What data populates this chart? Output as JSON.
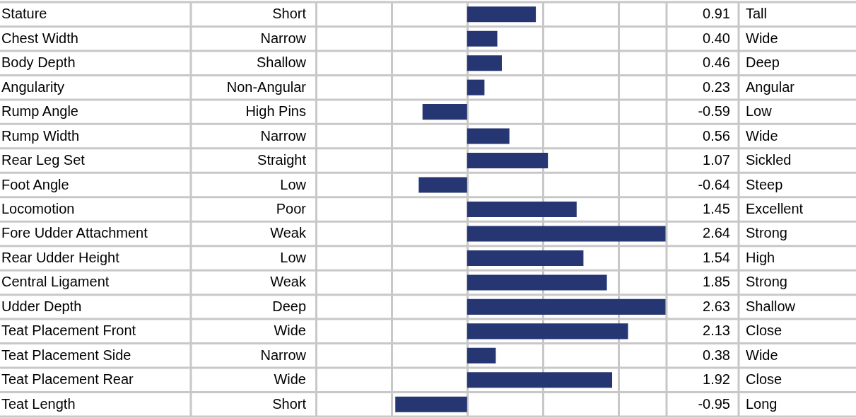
{
  "chart_data": {
    "type": "bar",
    "orientation": "horizontal",
    "categories": [
      "Stature",
      "Chest Width",
      "Body Depth",
      "Angularity",
      "Rump Angle",
      "Rump Width",
      "Rear Leg Set",
      "Foot Angle",
      "Locomotion",
      "Fore Udder Attachment",
      "Rear Udder Height",
      "Central Ligament",
      "Udder Depth",
      "Teat Placement Front",
      "Teat Placement Side",
      "Teat Placement Rear",
      "Teat Length"
    ],
    "values": [
      0.91,
      0.4,
      0.46,
      0.23,
      -0.59,
      0.56,
      1.07,
      -0.64,
      1.45,
      2.64,
      1.54,
      1.85,
      2.63,
      2.13,
      0.38,
      1.92,
      -0.95
    ],
    "value_labels": [
      "0.91",
      "0.40",
      "0.46",
      "0.23",
      "-0.59",
      "0.56",
      "1.07",
      "-0.64",
      "1.45",
      "2.64",
      "1.54",
      "1.85",
      "2.63",
      "2.13",
      "0.38",
      "1.92",
      "-0.95"
    ],
    "color": "#263673",
    "xlim": [
      -2,
      2.64
    ],
    "xticks": [
      {
        "value": -2,
        "label": null
      },
      {
        "value": -1,
        "label": null
      },
      {
        "value": 0,
        "label": null
      },
      {
        "value": 1,
        "label": null
      },
      {
        "value": 2,
        "label": null
      }
    ],
    "grid": true,
    "annotations": [
      "Short",
      "Tall",
      "Narrow",
      "Wide",
      "Shallow",
      "Deep",
      "Non-Angular",
      "Angular",
      "High Pins",
      "Low",
      "Narrow",
      "Wide",
      "Straight",
      "Sickled",
      "Low",
      "Steep",
      "Poor",
      "Excellent",
      "Weak",
      "Strong",
      "Low",
      "High",
      "Weak",
      "Strong",
      "Deep",
      "Shallow",
      "Wide",
      "Close",
      "Narrow",
      "Wide",
      "Wide",
      "Close",
      "Short",
      "Long"
    ]
  }
}
